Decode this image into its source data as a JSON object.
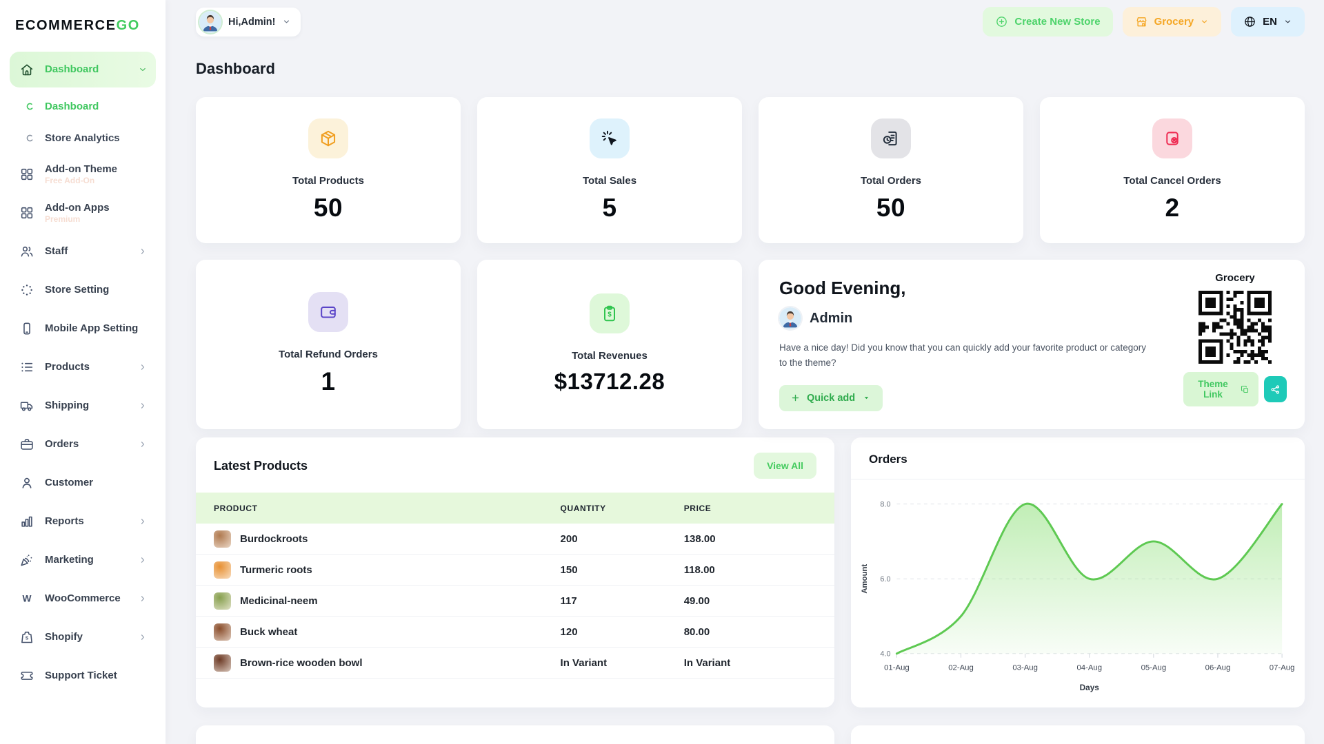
{
  "brand": {
    "name_primary": "ECOMMERCE",
    "name_accent": "GO"
  },
  "topbar": {
    "greeting": "Hi,Admin!",
    "create_store_label": "Create New Store",
    "store_selector_label": "Grocery",
    "language_label": "EN"
  },
  "page": {
    "title": "Dashboard"
  },
  "sidebar": {
    "items": [
      {
        "label": "Dashboard",
        "icon": "home-icon",
        "active": true,
        "chevron": "down",
        "children": [
          {
            "label": "Dashboard",
            "active": true
          },
          {
            "label": "Store Analytics",
            "active": false
          }
        ]
      },
      {
        "label": "Add-on Theme",
        "icon": "grid-icon",
        "badge": "Free Add-On"
      },
      {
        "label": "Add-on Apps",
        "icon": "grid-icon",
        "badge": "Premium"
      },
      {
        "label": "Staff",
        "icon": "users-icon",
        "chevron": "right"
      },
      {
        "label": "Store Setting",
        "icon": "dots-circle-icon"
      },
      {
        "label": "Mobile App Setting",
        "icon": "mobile-icon"
      },
      {
        "label": "Products",
        "icon": "list-icon",
        "chevron": "right"
      },
      {
        "label": "Shipping",
        "icon": "truck-icon",
        "chevron": "right"
      },
      {
        "label": "Orders",
        "icon": "briefcase-icon",
        "chevron": "right"
      },
      {
        "label": "Customer",
        "icon": "user-icon"
      },
      {
        "label": "Reports",
        "icon": "bar-chart-icon",
        "chevron": "right"
      },
      {
        "label": "Marketing",
        "icon": "megaphone-icon",
        "chevron": "right"
      },
      {
        "label": "WooCommerce",
        "icon": "woocommerce-icon",
        "chevron": "right"
      },
      {
        "label": "Shopify",
        "icon": "shopify-icon",
        "chevron": "right"
      },
      {
        "label": "Support Ticket",
        "icon": "ticket-icon"
      }
    ]
  },
  "stat_cards": [
    {
      "label": "Total Products",
      "value": "50",
      "icon": "package-icon",
      "icon_color": "#f09e1f",
      "icon_bg": "#fcf2da"
    },
    {
      "label": "Total Sales",
      "value": "5",
      "icon": "cursor-click-icon",
      "icon_color": "#10161e",
      "icon_bg": "#def2fc"
    },
    {
      "label": "Total Orders",
      "value": "50",
      "icon": "order-history-icon",
      "icon_color": "#232e3c",
      "icon_bg": "#e3e3e7"
    },
    {
      "label": "Total Cancel Orders",
      "value": "2",
      "icon": "cancel-order-icon",
      "icon_color": "#ee2b52",
      "icon_bg": "#fbd8de"
    },
    {
      "label": "Total Refund Orders",
      "value": "1",
      "icon": "wallet-icon",
      "icon_color": "#5a44c8",
      "icon_bg": "#e4e0f4"
    },
    {
      "label": "Total Revenues",
      "value": "$13712.28",
      "icon": "revenue-icon",
      "icon_color": "#2fc44e",
      "icon_bg": "#def8d9"
    }
  ],
  "greeting_card": {
    "title": "Good Evening,",
    "user": "Admin",
    "message": "Have a nice day! Did you know that you can quickly add your favorite product or category to the theme?",
    "quick_add_label": "Quick add",
    "store_name": "Grocery",
    "theme_link_label": "Theme Link"
  },
  "latest_products": {
    "title": "Latest Products",
    "view_all_label": "View All",
    "columns": [
      "PRODUCT",
      "QUANTITY",
      "PRICE"
    ],
    "rows": [
      {
        "product": "Burdockroots",
        "quantity": "200",
        "price": "138.00",
        "thumb": "#b07a50"
      },
      {
        "product": "Turmeric roots",
        "quantity": "150",
        "price": "118.00",
        "thumb": "#e79134"
      },
      {
        "product": "Medicinal-neem",
        "quantity": "117",
        "price": "49.00",
        "thumb": "#87a04f"
      },
      {
        "product": "Buck wheat",
        "quantity": "120",
        "price": "80.00",
        "thumb": "#8a4e2c"
      },
      {
        "product": "Brown-rice wooden bowl",
        "quantity": "In Variant",
        "price": "In Variant",
        "thumb": "#6d3b26"
      }
    ]
  },
  "orders_card": {
    "title": "Orders"
  },
  "chart_data": {
    "type": "area",
    "title": "Orders",
    "x": [
      "01-Aug",
      "02-Aug",
      "03-Aug",
      "04-Aug",
      "05-Aug",
      "06-Aug",
      "07-Aug"
    ],
    "series": [
      {
        "name": "Amount",
        "values": [
          4,
          5,
          8,
          6,
          7,
          6,
          8
        ]
      }
    ],
    "xlabel": "Days",
    "ylabel": "Amount",
    "ylim": [
      4,
      8
    ],
    "yticks": [
      4.0,
      6.0,
      8.0
    ],
    "grid": "horizontal-dashed",
    "legend": "none",
    "smooth": true,
    "line_color": "#5ec952",
    "fill_color": "#8ee07a"
  },
  "theme": {
    "accent_green": "#41cb5f",
    "accent_green_bg": "#e2f9de",
    "orange": "#f5a623",
    "orange_bg": "#fdf0da",
    "blue_bg": "#def1fd",
    "teal": "#1ecab8",
    "page_bg": "#f2f3f7"
  }
}
